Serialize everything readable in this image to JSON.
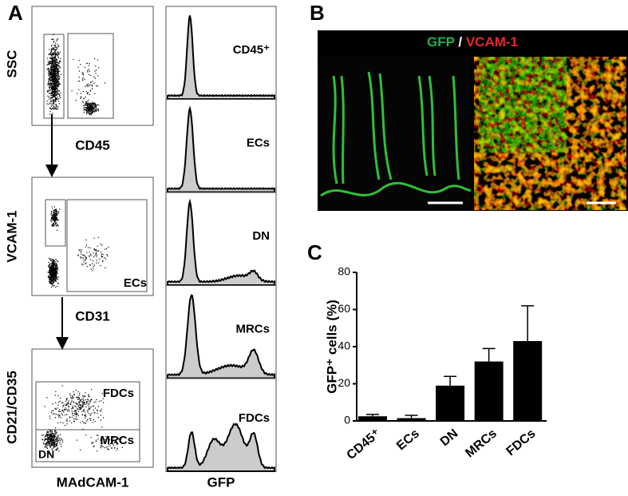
{
  "panels": {
    "a": "A",
    "b": "B",
    "c": "C"
  },
  "flow": [
    {
      "y_label": "SSC",
      "x_label": "CD45"
    },
    {
      "y_label": "VCAM-1",
      "x_label": "CD31",
      "gate_labels": [
        "ECs"
      ]
    },
    {
      "y_label": "CD21/CD35",
      "x_label": "MAdCAM-1",
      "gate_labels": [
        "FDCs",
        "MRCs",
        "DN"
      ]
    }
  ],
  "histograms": {
    "x_label": "GFP",
    "labels": [
      "CD45⁺",
      "ECs",
      "DN",
      "MRCs",
      "FDCs"
    ]
  },
  "image": {
    "title": [
      "GFP",
      "/",
      "VCAM-1"
    ]
  },
  "chart_data": {
    "type": "bar",
    "y_label": "GFP⁺ cells (%)",
    "categories": [
      "CD45⁺",
      "ECs",
      "DN",
      "MRCs",
      "FDCs"
    ],
    "values": [
      2.5,
      1.5,
      19,
      32,
      43
    ],
    "errors": [
      1,
      1.5,
      5,
      7,
      19
    ],
    "color": "#000000",
    "ylim": [
      0,
      80
    ],
    "yticks": [
      0,
      20,
      40,
      60,
      80
    ]
  }
}
